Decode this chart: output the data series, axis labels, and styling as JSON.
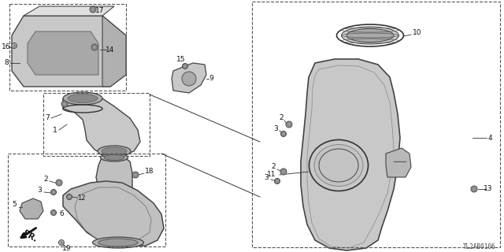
{
  "bg_color": "#ffffff",
  "diagram_code": "TL2AB0106",
  "fig_width": 6.4,
  "fig_height": 3.2,
  "dpi": 100,
  "part_color": "#d0d0d0",
  "part_edge": "#444444",
  "line_color": "#333333",
  "label_color": "#111111",
  "dash_color": "#555555"
}
